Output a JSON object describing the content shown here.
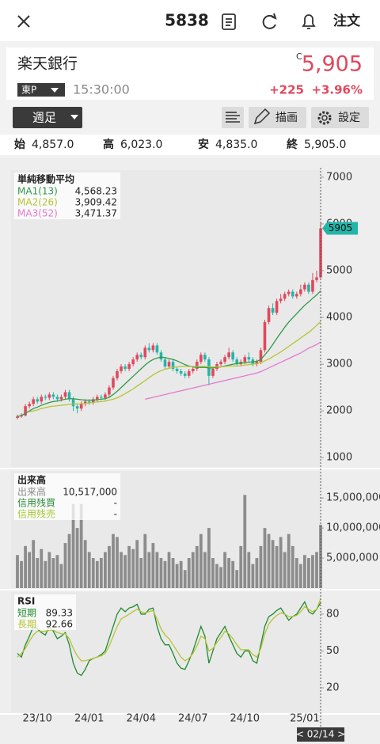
{
  "header": {
    "code": "5838",
    "order": "注文"
  },
  "quote": {
    "name": "楽天銀行",
    "market": "東P",
    "time": "15:30:00",
    "status": "C",
    "price": "5,905",
    "change": "+225",
    "change_pct": "+3.96%"
  },
  "toolbar": {
    "period": "週足",
    "draw": "描画",
    "settings": "設定"
  },
  "ohlc": [
    {
      "label": "始",
      "value": "4,857.0"
    },
    {
      "label": "高",
      "value": "6,023.0"
    },
    {
      "label": "安",
      "value": "4,835.0"
    },
    {
      "label": "終",
      "value": "5,905.0"
    }
  ],
  "chart_data": [
    {
      "type": "candlestick",
      "title": "単純移動平均",
      "up_color": "#e0485c",
      "down_color": "#22b5a8",
      "categories": [
        null,
        null,
        null,
        null,
        null,
        "23/10",
        null,
        null,
        null,
        null,
        null,
        null,
        null,
        null,
        null,
        null,
        null,
        null,
        "24/01",
        null,
        null,
        null,
        null,
        null,
        null,
        null,
        null,
        null,
        null,
        null,
        null,
        "24/04",
        null,
        null,
        null,
        null,
        null,
        null,
        null,
        null,
        null,
        null,
        null,
        null,
        "24/07",
        null,
        null,
        null,
        null,
        null,
        null,
        null,
        null,
        null,
        null,
        null,
        null,
        "24/10",
        null,
        null,
        null,
        null,
        null,
        null,
        null,
        null,
        null,
        null,
        null,
        null,
        null,
        null,
        "25/01",
        null,
        null,
        null,
        null
      ],
      "open": [
        1850,
        1880,
        1900,
        2100,
        2150,
        2250,
        2200,
        2300,
        2280,
        2350,
        2300,
        2250,
        2300,
        2400,
        2250,
        2100,
        2050,
        2150,
        2200,
        2180,
        2250,
        2300,
        2280,
        2350,
        2500,
        2700,
        2850,
        2950,
        2900,
        3000,
        3100,
        3200,
        3150,
        3350,
        3300,
        3400,
        3250,
        3100,
        2950,
        3050,
        2900,
        2850,
        2800,
        2750,
        2850,
        2900,
        3050,
        3200,
        3100,
        2750,
        2900,
        3000,
        3050,
        3150,
        3250,
        3100,
        3000,
        3050,
        3150,
        3100,
        3000,
        3050,
        3300,
        3900,
        4200,
        4100,
        4350,
        4400,
        4500,
        4550,
        4450,
        4500,
        4600,
        4700,
        4550,
        4800,
        4857
      ],
      "high": [
        1920,
        1950,
        2150,
        2200,
        2300,
        2300,
        2350,
        2350,
        2400,
        2400,
        2350,
        2350,
        2450,
        2450,
        2300,
        2150,
        2200,
        2250,
        2250,
        2300,
        2350,
        2350,
        2400,
        2550,
        2750,
        2900,
        3000,
        3000,
        3050,
        3150,
        3250,
        3250,
        3400,
        3450,
        3450,
        3450,
        3300,
        3150,
        3100,
        3100,
        2950,
        2900,
        2850,
        2900,
        2950,
        3100,
        3250,
        3250,
        3150,
        2950,
        3050,
        3100,
        3200,
        3350,
        3300,
        3150,
        3100,
        3200,
        3250,
        3150,
        3100,
        3350,
        3950,
        4250,
        4300,
        4400,
        4500,
        4550,
        4600,
        4600,
        4550,
        4700,
        4750,
        4750,
        4950,
        5000,
        6023
      ],
      "low": [
        1820,
        1850,
        1880,
        2050,
        2100,
        2150,
        2150,
        2230,
        2230,
        2250,
        2200,
        2200,
        2250,
        2200,
        2000,
        1950,
        2000,
        2100,
        2130,
        2130,
        2200,
        2230,
        2230,
        2300,
        2450,
        2650,
        2800,
        2850,
        2850,
        2950,
        3050,
        3100,
        3100,
        3250,
        3250,
        3200,
        3050,
        2900,
        2900,
        2850,
        2800,
        2750,
        2700,
        2700,
        2800,
        2850,
        3000,
        3050,
        2550,
        2700,
        2850,
        2950,
        3000,
        3100,
        3050,
        2950,
        2950,
        3000,
        3050,
        2950,
        2950,
        3000,
        3250,
        3850,
        4050,
        4050,
        4300,
        4350,
        4450,
        4400,
        4400,
        4450,
        4550,
        4500,
        4500,
        4750,
        4835
      ],
      "close": [
        1880,
        1900,
        2100,
        2150,
        2250,
        2200,
        2300,
        2280,
        2350,
        2300,
        2250,
        2300,
        2400,
        2250,
        2100,
        2050,
        2150,
        2200,
        2180,
        2250,
        2300,
        2280,
        2350,
        2500,
        2700,
        2850,
        2950,
        2900,
        3000,
        3100,
        3200,
        3150,
        3350,
        3300,
        3400,
        3250,
        3100,
        2950,
        3050,
        2900,
        2850,
        2800,
        2750,
        2850,
        2900,
        3050,
        3200,
        3100,
        2750,
        2900,
        3000,
        3050,
        3150,
        3250,
        3100,
        3000,
        3050,
        3150,
        3100,
        3000,
        3050,
        3300,
        3900,
        4200,
        4100,
        4350,
        4400,
        4500,
        4550,
        4450,
        4500,
        4600,
        4700,
        4550,
        4800,
        4857,
        5905
      ],
      "series": [
        {
          "name": "MA1(13)",
          "color": "#2e9a4a",
          "reading": "4,568.23",
          "values": [
            1880,
            1900,
            1950,
            2000,
            2050,
            2080,
            2120,
            2150,
            2180,
            2200,
            2210,
            2230,
            2250,
            2260,
            2260,
            2250,
            2240,
            2230,
            2230,
            2230,
            2240,
            2250,
            2260,
            2290,
            2350,
            2420,
            2500,
            2580,
            2660,
            2740,
            2820,
            2900,
            2980,
            3050,
            3100,
            3130,
            3150,
            3140,
            3120,
            3100,
            3070,
            3030,
            2990,
            2960,
            2940,
            2930,
            2930,
            2930,
            2920,
            2920,
            2930,
            2940,
            2960,
            2980,
            3000,
            3010,
            3020,
            3030,
            3040,
            3050,
            3060,
            3100,
            3200,
            3300,
            3420,
            3550,
            3670,
            3790,
            3900,
            3990,
            4080,
            4170,
            4260,
            4330,
            4410,
            4480,
            4568.23
          ]
        },
        {
          "name": "MA2(26)",
          "color": "#b5c437",
          "reading": "3,909.42",
          "values": [
            null,
            null,
            null,
            1980,
            2000,
            2020,
            2050,
            2070,
            2090,
            2100,
            2110,
            2120,
            2130,
            2140,
            2150,
            2150,
            2150,
            2160,
            2170,
            2180,
            2190,
            2200,
            2210,
            2230,
            2250,
            2280,
            2320,
            2370,
            2420,
            2470,
            2530,
            2590,
            2650,
            2710,
            2770,
            2820,
            2860,
            2890,
            2910,
            2930,
            2940,
            2950,
            2950,
            2950,
            2950,
            2950,
            2950,
            2950,
            2940,
            2940,
            2940,
            2940,
            2950,
            2960,
            2960,
            2960,
            2970,
            2980,
            2990,
            3000,
            3010,
            3030,
            3070,
            3110,
            3160,
            3210,
            3260,
            3320,
            3380,
            3440,
            3500,
            3560,
            3620,
            3680,
            3750,
            3830,
            3909.42
          ]
        },
        {
          "name": "MA3(52)",
          "color": "#e27ad0",
          "reading": "3,471.37",
          "values": [
            null,
            null,
            null,
            null,
            null,
            null,
            null,
            null,
            null,
            null,
            null,
            null,
            null,
            null,
            null,
            null,
            null,
            null,
            null,
            null,
            null,
            null,
            null,
            null,
            null,
            null,
            null,
            null,
            null,
            null,
            null,
            null,
            2250,
            2270,
            2290,
            2310,
            2330,
            2350,
            2370,
            2390,
            2410,
            2430,
            2450,
            2470,
            2490,
            2510,
            2530,
            2550,
            2570,
            2590,
            2610,
            2630,
            2650,
            2670,
            2690,
            2710,
            2730,
            2750,
            2770,
            2790,
            2810,
            2840,
            2880,
            2920,
            2960,
            3000,
            3040,
            3080,
            3120,
            3160,
            3200,
            3240,
            3290,
            3340,
            3380,
            3420,
            3471.37
          ]
        }
      ],
      "ylim": [
        800,
        7150
      ],
      "yticks": [
        1000,
        2000,
        3000,
        4000,
        5000,
        6000,
        7000
      ],
      "cursor_label": "< 02/14 >"
    },
    {
      "type": "bar",
      "title": "出来高",
      "series": [
        {
          "name": "出来高",
          "color": "#8c8c8c",
          "reading": "10,517,000",
          "values": [
            5500000,
            4500000,
            7000000,
            6000000,
            8000000,
            5000000,
            6500000,
            4500000,
            6000000,
            5000000,
            5500000,
            4000000,
            7500000,
            9000000,
            14000000,
            10000000,
            14000000,
            8000000,
            6000000,
            5000000,
            4500000,
            5000000,
            6000000,
            7000000,
            9000000,
            8500000,
            6000000,
            5500000,
            7000000,
            6500000,
            8000000,
            5000000,
            9000000,
            6000000,
            7500000,
            6000000,
            5000000,
            4500000,
            6000000,
            5000000,
            4000000,
            4500000,
            3000000,
            5000000,
            6000000,
            7000000,
            9000000,
            6000000,
            10000000,
            5000000,
            4000000,
            3500000,
            6000000,
            5000000,
            4500000,
            3000000,
            7000000,
            15500000,
            6000000,
            4000000,
            5000000,
            7000000,
            10000000,
            9000000,
            8000000,
            7000000,
            8500000,
            6000000,
            9000000,
            7000000,
            5000000,
            4000000,
            5500000,
            5000000,
            5500000,
            6000000,
            10517000
          ]
        },
        {
          "name": "信用残買",
          "color": "#2e8b3a",
          "reading": "-"
        },
        {
          "name": "信用残売",
          "color": "#a6c832",
          "reading": "-"
        }
      ],
      "ylim": [
        0,
        19500000
      ],
      "yticks": [
        {
          "value": 5000000,
          "label": "5,000,000"
        },
        {
          "value": 10000000,
          "label": "10,000,000"
        },
        {
          "value": 15000000,
          "label": "15,000,000"
        }
      ]
    },
    {
      "type": "line",
      "title": "RSI",
      "series": [
        {
          "name": "短期",
          "color": "#1f8a2e",
          "reading": "89.33",
          "values": [
            48,
            45,
            55,
            62,
            70,
            68,
            65,
            63,
            70,
            66,
            60,
            62,
            65,
            55,
            40,
            32,
            30,
            35,
            42,
            44,
            45,
            47,
            50,
            60,
            70,
            80,
            85,
            82,
            85,
            86,
            88,
            80,
            80,
            84,
            85,
            70,
            60,
            55,
            55,
            48,
            40,
            36,
            35,
            42,
            50,
            60,
            70,
            62,
            40,
            50,
            60,
            65,
            70,
            62,
            55,
            48,
            45,
            50,
            50,
            42,
            40,
            55,
            70,
            78,
            80,
            83,
            85,
            80,
            75,
            78,
            80,
            85,
            90,
            82,
            80,
            84,
            89.33
          ]
        },
        {
          "name": "長期",
          "color": "#b5c437",
          "reading": "92.66",
          "values": [
            45,
            48,
            52,
            58,
            63,
            66,
            66,
            66,
            67,
            67,
            65,
            64,
            64,
            60,
            52,
            46,
            42,
            42,
            43,
            44,
            45,
            46,
            48,
            54,
            62,
            70,
            76,
            78,
            80,
            82,
            84,
            82,
            81,
            82,
            83,
            76,
            68,
            63,
            60,
            55,
            50,
            45,
            42,
            44,
            48,
            54,
            62,
            60,
            50,
            52,
            57,
            61,
            66,
            64,
            60,
            55,
            51,
            51,
            51,
            47,
            45,
            52,
            64,
            72,
            76,
            79,
            81,
            80,
            78,
            78,
            79,
            82,
            86,
            84,
            82,
            84,
            92.66
          ]
        }
      ],
      "ylim": [
        0,
        98
      ],
      "yticks": [
        20,
        50,
        80
      ]
    }
  ]
}
